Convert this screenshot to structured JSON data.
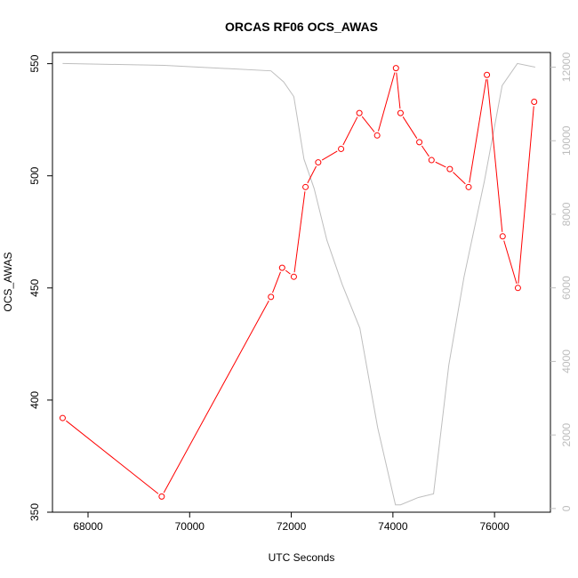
{
  "chart_data": {
    "type": "line",
    "title": "ORCAS RF06 OCS_AWAS",
    "xlabel": "UTC Seconds",
    "ylabel": "OCS_AWAS",
    "xlim": [
      67300,
      77100
    ],
    "ylim": [
      350,
      555
    ],
    "y2lim": [
      -100,
      12400
    ],
    "x_ticks": [
      68000,
      70000,
      72000,
      74000,
      76000
    ],
    "y_ticks": [
      350,
      400,
      450,
      500,
      550
    ],
    "y2_ticks": [
      0,
      2000,
      4000,
      6000,
      8000,
      10000,
      12000
    ],
    "grid": false,
    "colors": {
      "primary": "#ff0000",
      "secondary": "#bebebe"
    },
    "series": [
      {
        "axis": "left",
        "x": [
          67500,
          69450,
          71600,
          71820,
          72050,
          72280,
          72530,
          72980,
          73340,
          73690,
          74060,
          74150,
          74520,
          74760,
          75120,
          75490,
          75850,
          76160,
          76460,
          76780
        ],
        "values": [
          392,
          357,
          446,
          459,
          455,
          495,
          506,
          512,
          528,
          518,
          548,
          528,
          515,
          507,
          503,
          495,
          545,
          473,
          450,
          533
        ]
      },
      {
        "axis": "right",
        "x": [
          67500,
          69500,
          71600,
          71850,
          72050,
          72250,
          72450,
          72700,
          73000,
          73350,
          73700,
          74050,
          74150,
          74500,
          74800,
          75100,
          75400,
          75800,
          76150,
          76450,
          76800
        ],
        "values": [
          12100,
          12050,
          11900,
          11600,
          11200,
          9500,
          8700,
          7300,
          6100,
          4900,
          2200,
          100,
          100,
          300,
          400,
          3900,
          6300,
          8900,
          11500,
          12100,
          12000
        ]
      }
    ]
  }
}
